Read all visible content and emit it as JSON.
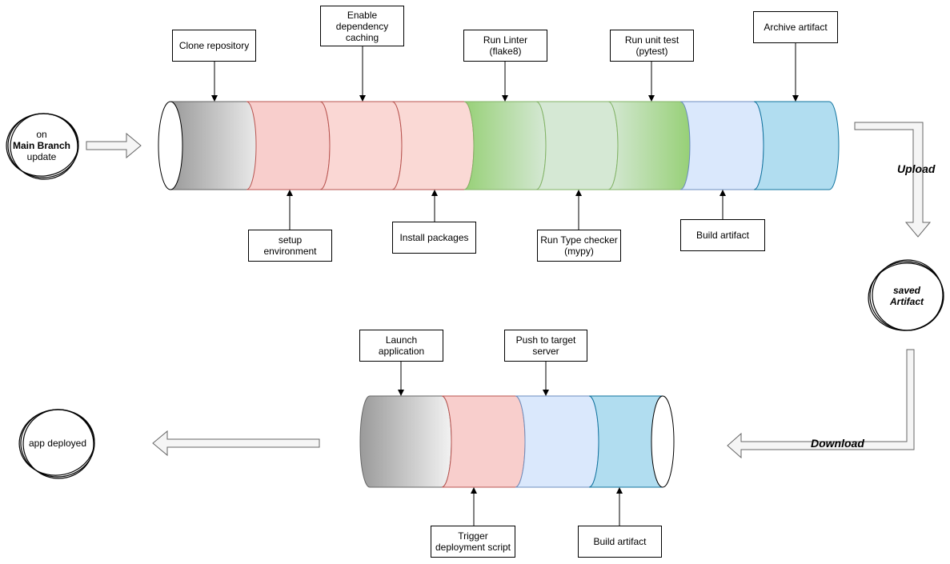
{
  "trigger": {
    "line1": "on",
    "line2": "Main Branch",
    "line3": "update"
  },
  "ci_steps_top": {
    "clone": "Clone repository",
    "cache": "Enable dependency caching",
    "lint": "Run Linter (flake8)",
    "unit": "Run unit test (pytest)",
    "archive": "Archive artifact"
  },
  "ci_steps_bottom": {
    "setup": "setup environment",
    "install": "Install packages",
    "typecheck": "Run Type checker (mypy)",
    "build": "Build artifact"
  },
  "upload_label": "Upload",
  "saved_artifact": {
    "line1": "saved",
    "line2": "Artifact"
  },
  "download_label": "Download",
  "cd_steps_top": {
    "launch": "Launch application",
    "push": "Push to target server"
  },
  "cd_steps_bottom": {
    "trigger": "Trigger deployment script",
    "build": "Build artifact"
  },
  "deployed_label": "app deployed",
  "colors": {
    "gray": "#c8c8c8",
    "red": "#f8cecc",
    "green": "#d5e8d4",
    "green_dark": "#97d077",
    "blue_light": "#dae8fc",
    "blue": "#b1ddf0"
  }
}
